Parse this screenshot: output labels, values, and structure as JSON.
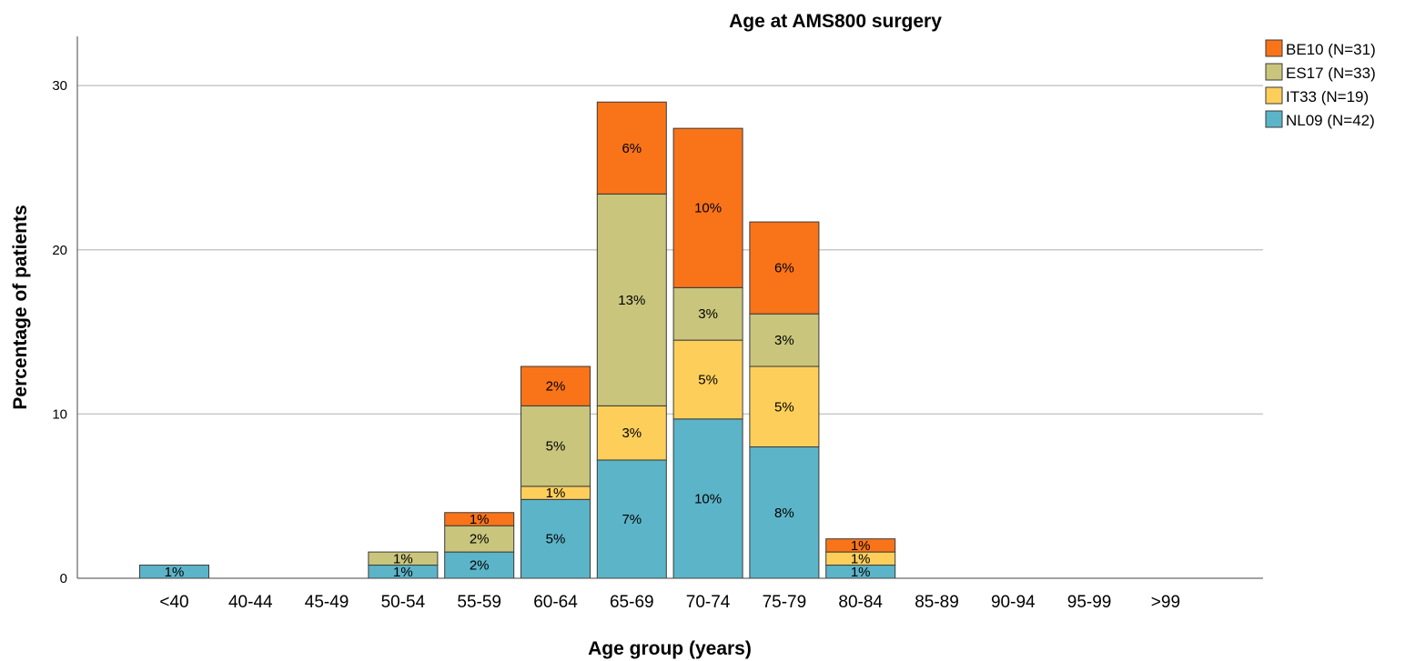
{
  "chart_data": {
    "type": "bar",
    "stacked": true,
    "title": "Age at AMS800 surgery",
    "xlabel": "Age group (years)",
    "ylabel": "Percentage of patients",
    "ylim": [
      0,
      33
    ],
    "yticks": [
      0,
      10,
      20,
      30
    ],
    "grid": true,
    "legend_position": "top-right",
    "categories": [
      "<40",
      "40-44",
      "45-49",
      "50-54",
      "55-59",
      "60-64",
      "65-69",
      "70-74",
      "75-79",
      "80-84",
      "85-89",
      "90-94",
      "95-99",
      ">99"
    ],
    "series": [
      {
        "name": "NL09 (N=42)",
        "color": "#5cb4c8",
        "values": [
          0.8,
          0,
          0,
          0.8,
          1.6,
          4.8,
          7.2,
          9.7,
          8.0,
          0.8,
          0,
          0,
          0,
          0
        ],
        "labels": [
          "1%",
          "",
          "",
          "1%",
          "2%",
          "5%",
          "7%",
          "10%",
          "8%",
          "1%",
          "",
          "",
          "",
          ""
        ]
      },
      {
        "name": "IT33 (N=19)",
        "color": "#fdcf5a",
        "values": [
          0,
          0,
          0,
          0,
          0,
          0.8,
          3.3,
          4.8,
          4.9,
          0.8,
          0,
          0,
          0,
          0
        ],
        "labels": [
          "",
          "",
          "",
          "",
          "",
          "1%",
          "3%",
          "5%",
          "5%",
          "1%",
          "",
          "",
          "",
          ""
        ]
      },
      {
        "name": "ES17 (N=33)",
        "color": "#c9c57c",
        "values": [
          0,
          0,
          0,
          0.8,
          1.6,
          4.9,
          12.9,
          3.2,
          3.2,
          0,
          0,
          0,
          0,
          0
        ],
        "labels": [
          "",
          "",
          "",
          "1%",
          "2%",
          "5%",
          "13%",
          "3%",
          "3%",
          "",
          "",
          "",
          "",
          ""
        ]
      },
      {
        "name": "BE10 (N=31)",
        "color": "#f97419",
        "values": [
          0,
          0,
          0,
          0,
          0.8,
          2.4,
          5.6,
          9.7,
          5.6,
          0.8,
          0,
          0,
          0,
          0
        ],
        "labels": [
          "",
          "",
          "",
          "",
          "1%",
          "2%",
          "6%",
          "10%",
          "6%",
          "1%",
          "",
          "",
          "",
          ""
        ]
      }
    ]
  }
}
